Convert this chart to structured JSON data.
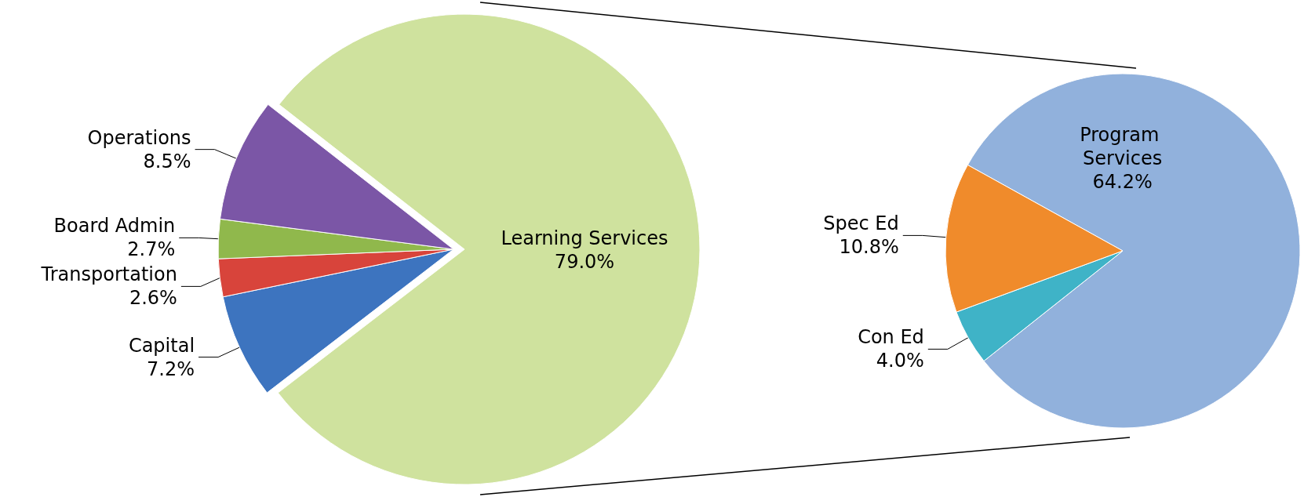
{
  "chart_data": [
    {
      "type": "pie",
      "categories": [
        "Learning Services",
        "Capital",
        "Transportation",
        "Board Admin",
        "Operations"
      ],
      "values": [
        79.0,
        7.2,
        2.6,
        2.7,
        8.5
      ],
      "value_labels": [
        "79.0%",
        "7.2%",
        "2.6%",
        "2.7%",
        "8.5%"
      ],
      "colors": [
        "#cfe29e",
        "#3d74bf",
        "#d8443b",
        "#90b84c",
        "#7b56a6"
      ],
      "legend": false
    },
    {
      "type": "pie",
      "categories": [
        "Program Services",
        "Con Ed",
        "Spec Ed"
      ],
      "values": [
        64.2,
        4.0,
        10.8
      ],
      "value_labels": [
        "64.2%",
        "4.0%",
        "10.8%"
      ],
      "colors": [
        "#91b1dc",
        "#3fb3c7",
        "#f08b2b"
      ],
      "legend": false
    }
  ]
}
